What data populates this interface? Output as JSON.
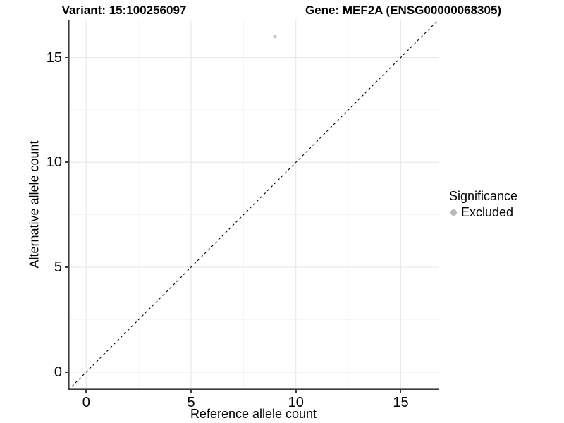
{
  "titles": {
    "variant": "Variant: 15:100256097",
    "gene": "Gene: MEF2A (ENSG00000068305)"
  },
  "colors": {
    "background": "#ffffff",
    "axis_line": "#3c3c3c",
    "grid_major": "#e9e9e9",
    "grid_minor": "#f4f4f4",
    "identity_line": "#000000",
    "point": "#c6c6c6",
    "legend_dot": "#b7b7b7",
    "text": "#000000"
  },
  "chart_data": {
    "type": "scatter",
    "title_left": "Variant: 15:100256097",
    "title_right": "Gene: MEF2A (ENSG00000068305)",
    "xlabel": "Reference allele count",
    "ylabel": "Alternative allele count",
    "xlim": [
      -0.85,
      16.8
    ],
    "ylim": [
      -0.85,
      16.8
    ],
    "x_ticks": [
      0,
      5,
      10,
      15
    ],
    "y_ticks": [
      0,
      5,
      10,
      15
    ],
    "x_minor_ticks": [
      2.5,
      7.5,
      12.5
    ],
    "y_minor_ticks": [
      2.5,
      7.5,
      12.5
    ],
    "grid": "major+minor",
    "points": [
      {
        "x": 9,
        "y": 16,
        "significance": "Excluded"
      }
    ],
    "identity_line": {
      "equation": "y = x",
      "style": "dashed"
    },
    "legend": {
      "title": "Significance",
      "position": "right",
      "items": [
        {
          "label": "Excluded"
        }
      ]
    }
  }
}
